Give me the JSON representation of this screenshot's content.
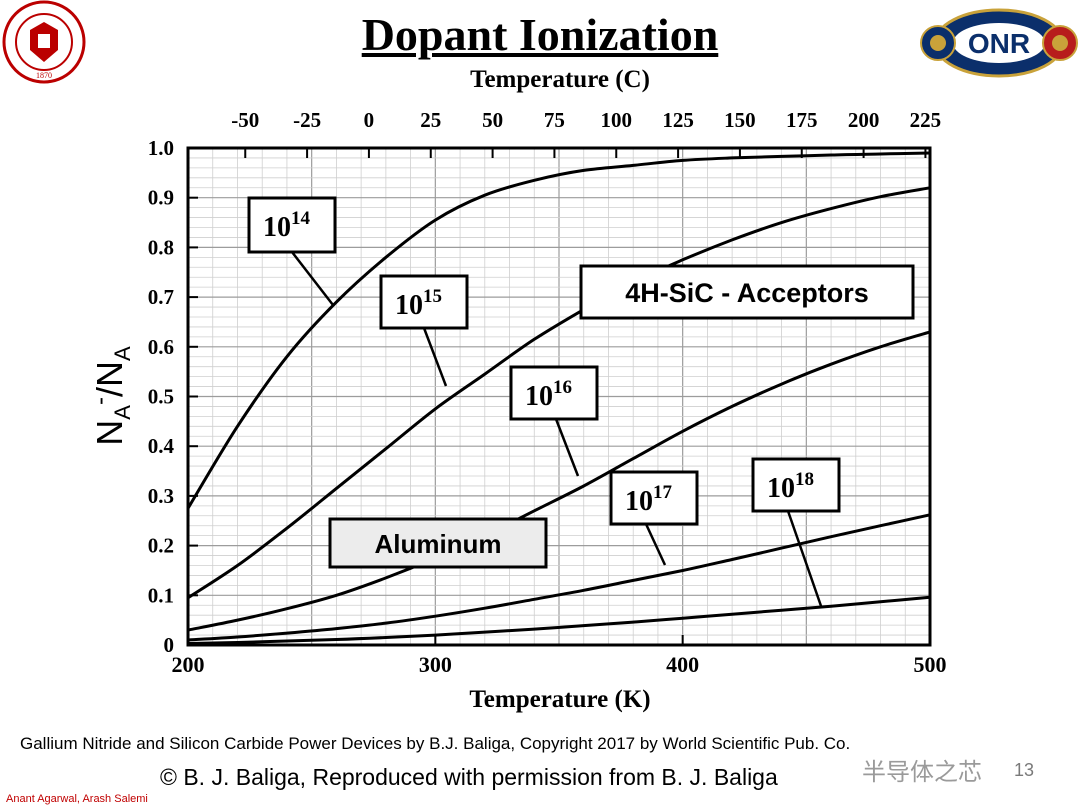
{
  "slide": {
    "title": "Dopant Ionization",
    "citation": "Gallium Nitride and Silicon Carbide Power Devices by B.J. Baliga, Copyright 2017 by World Scientific Pub. Co.",
    "copyright": "© B. J. Baliga,  Reproduced with permission from B. J. Baliga",
    "authors": "Anant Agarwal, Arash Salemi",
    "watermark": "半导体之芯",
    "slide_number": "13",
    "logos": {
      "left": {
        "text": "THE OHIO STATE UNIVERSITY",
        "year": "1870",
        "color": "#bb0000"
      },
      "right": {
        "text": "OFFICE OF NAVAL RESEARCH",
        "mark": "ONR",
        "color": "#0b2f6b"
      }
    }
  },
  "chart_data": {
    "type": "line",
    "title": "Dopant Ionization",
    "xlabel": "Temperature  (K)",
    "x2label": "Temperature  (C)",
    "ylabel_main": "N",
    "ylabel_sub1": "A",
    "ylabel_sup": "-",
    "ylabel_mid": "/N",
    "ylabel_sub2": "A",
    "xlim": [
      200,
      500
    ],
    "ylim": [
      0,
      1.0
    ],
    "x_ticks": [
      200,
      300,
      400,
      500
    ],
    "x_tick_labels": [
      "200",
      "300",
      "400",
      "500"
    ],
    "top_ticks_c": [
      -50,
      -25,
      0,
      25,
      50,
      75,
      100,
      125,
      150,
      175,
      200,
      225
    ],
    "top_tick_labels": [
      "-50",
      "-25",
      "0",
      "25",
      "50",
      "75",
      "100",
      "125",
      "150",
      "175",
      "200",
      "225"
    ],
    "y_ticks": [
      0,
      0.1,
      0.2,
      0.3,
      0.4,
      0.5,
      0.6,
      0.7,
      0.8,
      0.9,
      1.0
    ],
    "y_tick_labels": [
      "0",
      "0.1",
      "0.2",
      "0.3",
      "0.4",
      "0.5",
      "0.6",
      "0.7",
      "0.8",
      "0.9",
      "1.0"
    ],
    "grid": true,
    "annotations": {
      "material": "4H-SiC - Acceptors",
      "dopant": "Aluminum"
    },
    "series": [
      {
        "name": "10^14",
        "base": "10",
        "exp": "14",
        "x": [
          200,
          220,
          240,
          260,
          280,
          300,
          320,
          340,
          360,
          380,
          400,
          420,
          440,
          460,
          480,
          500
        ],
        "y": [
          0.275,
          0.44,
          0.58,
          0.69,
          0.78,
          0.855,
          0.905,
          0.935,
          0.955,
          0.965,
          0.975,
          0.98,
          0.983,
          0.986,
          0.988,
          0.99
        ]
      },
      {
        "name": "10^15",
        "base": "10",
        "exp": "15",
        "x": [
          200,
          220,
          240,
          260,
          280,
          300,
          320,
          340,
          360,
          380,
          400,
          420,
          440,
          460,
          480,
          500
        ],
        "y": [
          0.095,
          0.16,
          0.235,
          0.315,
          0.395,
          0.475,
          0.545,
          0.615,
          0.675,
          0.73,
          0.775,
          0.815,
          0.85,
          0.878,
          0.902,
          0.92
        ]
      },
      {
        "name": "10^16",
        "base": "10",
        "exp": "16",
        "x": [
          200,
          220,
          240,
          260,
          280,
          300,
          320,
          340,
          360,
          380,
          400,
          420,
          440,
          460,
          480,
          500
        ],
        "y": [
          0.03,
          0.05,
          0.073,
          0.1,
          0.135,
          0.175,
          0.22,
          0.27,
          0.32,
          0.375,
          0.43,
          0.48,
          0.525,
          0.565,
          0.6,
          0.63
        ]
      },
      {
        "name": "10^17",
        "base": "10",
        "exp": "17",
        "x": [
          200,
          220,
          240,
          260,
          280,
          300,
          320,
          340,
          360,
          380,
          400,
          420,
          440,
          460,
          480,
          500
        ],
        "y": [
          0.01,
          0.016,
          0.024,
          0.033,
          0.044,
          0.058,
          0.074,
          0.092,
          0.11,
          0.13,
          0.15,
          0.172,
          0.195,
          0.218,
          0.24,
          0.262
        ]
      },
      {
        "name": "10^18",
        "base": "10",
        "exp": "18",
        "x": [
          200,
          220,
          240,
          260,
          280,
          300,
          320,
          340,
          360,
          380,
          400,
          420,
          440,
          460,
          480,
          500
        ],
        "y": [
          0.003,
          0.005,
          0.008,
          0.011,
          0.015,
          0.02,
          0.026,
          0.032,
          0.039,
          0.046,
          0.054,
          0.062,
          0.07,
          0.078,
          0.087,
          0.096
        ]
      }
    ]
  }
}
